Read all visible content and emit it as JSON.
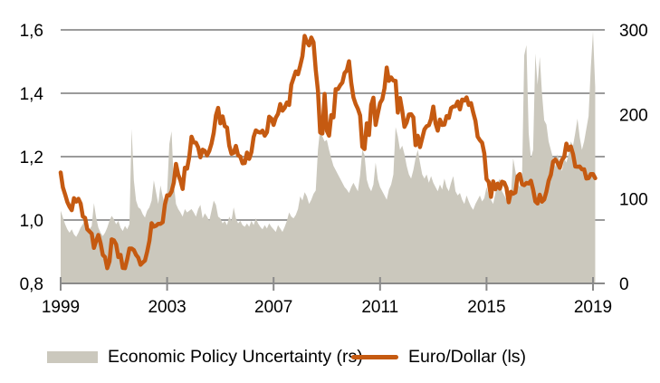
{
  "legend": {
    "items": [
      {
        "label": "Economic Policy Uncertainty (rs)",
        "swatch": "area",
        "color": "#CBC8BD"
      },
      {
        "label": "Euro/Dollar (ls)",
        "swatch": "line",
        "color": "#C55A11"
      }
    ]
  },
  "colors": {
    "background": "#FFFFFF",
    "gridline": "#9B9B9B",
    "axis": "#8A8A8A",
    "text": "#000000",
    "area": "#CBC8BD",
    "line": "#C55A11"
  },
  "chart_data": {
    "type": "combo",
    "subtype": "monthly line (left axis) + area (right axis)",
    "title": "",
    "x_axis": {
      "unit": "time, monthly",
      "start": "1999-01",
      "end": "2019-02",
      "tick_years": [
        1999,
        2003,
        2007,
        2011,
        2015,
        2019
      ],
      "tick_labels": [
        "1999",
        "2003",
        "2007",
        "2011",
        "2015",
        "2019"
      ]
    },
    "left_axis": {
      "min": 0.8,
      "max": 1.6,
      "tick_values": [
        1.6,
        1.4,
        1.2,
        1.0,
        0.8
      ],
      "tick_labels": [
        "1,6",
        "1,4",
        "1,2",
        "1,0",
        "0,8"
      ],
      "series_name": "Euro/Dollar (ls)"
    },
    "right_axis": {
      "min": 0,
      "max": 300,
      "tick_values": [
        300,
        200,
        100,
        0
      ],
      "tick_labels": [
        "300",
        "200",
        "100",
        "0"
      ],
      "series_name": "Economic Policy Uncertainty (rs)"
    },
    "gridlines_at_left_values": [
      1.6,
      1.4,
      1.2,
      1.0
    ],
    "legend_position": "bottom",
    "series": [
      {
        "name": "Economic Policy Uncertainty (rs)",
        "type": "area",
        "axis": "right",
        "color": "#CBC8BD",
        "values_by_year": {
          "1999": [
            86,
            78,
            70,
            64,
            60,
            64,
            58,
            55,
            60,
            66,
            70,
            76
          ],
          "2000": [
            70,
            64,
            68,
            95,
            78,
            66,
            60,
            56,
            60,
            66,
            74,
            80
          ],
          "2001": [
            76,
            70,
            74,
            66,
            62,
            68,
            64,
            70,
            183,
            122,
            98,
            90
          ],
          "2002": [
            88,
            82,
            78,
            86,
            90,
            98,
            122,
            108,
            94,
            116,
            103,
            93
          ],
          "2003": [
            108,
            165,
            180,
            118,
            94,
            88,
            84,
            79,
            88,
            84,
            86,
            88
          ],
          "2004": [
            84,
            79,
            88,
            93,
            77,
            83,
            79,
            74,
            86,
            98,
            93,
            79
          ],
          "2005": [
            77,
            71,
            74,
            69,
            79,
            74,
            90,
            77,
            71,
            74,
            69,
            67
          ],
          "2006": [
            71,
            67,
            74,
            69,
            77,
            71,
            67,
            64,
            69,
            65,
            71,
            67
          ],
          "2007": [
            64,
            61,
            69,
            65,
            61,
            67,
            74,
            84,
            79,
            77,
            81,
            88
          ],
          "2008": [
            103,
            98,
            108,
            103,
            94,
            99,
            106,
            110,
            158,
            183,
            174,
            168
          ],
          "2009": [
            170,
            158,
            148,
            139,
            134,
            129,
            124,
            119,
            114,
            111,
            107,
            114
          ],
          "2010": [
            119,
            114,
            109,
            128,
            158,
            152,
            123,
            114,
            109,
            117,
            143,
            123
          ],
          "2011": [
            114,
            109,
            104,
            99,
            111,
            117,
            129,
            185,
            174,
            158,
            163,
            153
          ],
          "2012": [
            139,
            129,
            124,
            134,
            148,
            158,
            143,
            129,
            124,
            129,
            119,
            127
          ],
          "2013": [
            119,
            114,
            109,
            117,
            111,
            124,
            114,
            109,
            119,
            127,
            109,
            104
          ],
          "2014": [
            107,
            99,
            94,
            104,
            97,
            91,
            87,
            94,
            99,
            104,
            97,
            101
          ],
          "2015": [
            114,
            104,
            99,
            94,
            107,
            119,
            124,
            109,
            104,
            99,
            109,
            104
          ],
          "2016": [
            148,
            133,
            119,
            114,
            124,
            270,
            282,
            178,
            148,
            158,
            272,
            235
          ],
          "2017": [
            268,
            225,
            193,
            188,
            168,
            158,
            148,
            138,
            153,
            143,
            133,
            148
          ],
          "2018": [
            143,
            153,
            168,
            163,
            178,
            195,
            173,
            158,
            168,
            183,
            198,
            255
          ],
          "2019": [
            298,
            232
          ]
        }
      },
      {
        "name": "Euro/Dollar (ls)",
        "type": "line",
        "axis": "left",
        "color": "#C55A11",
        "stroke_width": 4.5,
        "values_by_year": {
          "1999": [
            1.15,
            1.103,
            1.081,
            1.057,
            1.042,
            1.031,
            1.069,
            1.058,
            1.067,
            1.052,
            1.011,
            1.007
          ],
          "2000": [
            0.971,
            0.964,
            0.957,
            0.912,
            0.934,
            0.953,
            0.927,
            0.89,
            0.883,
            0.848,
            0.869,
            0.939
          ],
          "2001": [
            0.936,
            0.923,
            0.883,
            0.89,
            0.849,
            0.848,
            0.876,
            0.91,
            0.91,
            0.905,
            0.89,
            0.881
          ],
          "2002": [
            0.859,
            0.866,
            0.872,
            0.9,
            0.934,
            0.99,
            0.979,
            0.982,
            0.988,
            0.988,
            0.993,
            1.049
          ],
          "2003": [
            1.078,
            1.078,
            1.09,
            1.118,
            1.177,
            1.143,
            1.125,
            1.098,
            1.165,
            1.162,
            1.2,
            1.263
          ],
          "2004": [
            1.245,
            1.244,
            1.229,
            1.198,
            1.222,
            1.218,
            1.204,
            1.218,
            1.241,
            1.275,
            1.33,
            1.354
          ],
          "2005": [
            1.305,
            1.327,
            1.296,
            1.292,
            1.235,
            1.209,
            1.212,
            1.234,
            1.204,
            1.2,
            1.179,
            1.18
          ],
          "2006": [
            1.213,
            1.193,
            1.214,
            1.262,
            1.283,
            1.278,
            1.276,
            1.282,
            1.266,
            1.277,
            1.326,
            1.32
          ],
          "2007": [
            1.3,
            1.323,
            1.335,
            1.366,
            1.345,
            1.354,
            1.371,
            1.363,
            1.427,
            1.448,
            1.469,
            1.46
          ],
          "2008": [
            1.487,
            1.517,
            1.581,
            1.562,
            1.551,
            1.576,
            1.561,
            1.474,
            1.408,
            1.276,
            1.273,
            1.398
          ],
          "2009": [
            1.282,
            1.266,
            1.331,
            1.324,
            1.413,
            1.413,
            1.425,
            1.434,
            1.464,
            1.472,
            1.501,
            1.433
          ],
          "2010": [
            1.387,
            1.366,
            1.351,
            1.33,
            1.231,
            1.224,
            1.305,
            1.268,
            1.363,
            1.386,
            1.3,
            1.336
          ],
          "2011": [
            1.369,
            1.381,
            1.416,
            1.481,
            1.439,
            1.45,
            1.44,
            1.439,
            1.339,
            1.385,
            1.345,
            1.294
          ],
          "2012": [
            1.308,
            1.333,
            1.334,
            1.324,
            1.236,
            1.266,
            1.23,
            1.258,
            1.286,
            1.296,
            1.299,
            1.319
          ],
          "2013": [
            1.358,
            1.305,
            1.282,
            1.317,
            1.3,
            1.301,
            1.328,
            1.322,
            1.353,
            1.358,
            1.359,
            1.374
          ],
          "2014": [
            1.349,
            1.38,
            1.377,
            1.387,
            1.363,
            1.369,
            1.339,
            1.313,
            1.263,
            1.252,
            1.244,
            1.21
          ],
          "2015": [
            1.129,
            1.12,
            1.073,
            1.122,
            1.097,
            1.115,
            1.099,
            1.121,
            1.118,
            1.101,
            1.056,
            1.089
          ],
          "2016": [
            1.083,
            1.087,
            1.138,
            1.145,
            1.113,
            1.11,
            1.117,
            1.115,
            1.124,
            1.096,
            1.059,
            1.052
          ],
          "2017": [
            1.08,
            1.058,
            1.065,
            1.09,
            1.124,
            1.143,
            1.184,
            1.191,
            1.181,
            1.165,
            1.19,
            1.199
          ],
          "2018": [
            1.241,
            1.221,
            1.232,
            1.208,
            1.169,
            1.168,
            1.169,
            1.16,
            1.16,
            1.131,
            1.132,
            1.145
          ],
          "2019": [
            1.145,
            1.132
          ]
        }
      }
    ]
  }
}
